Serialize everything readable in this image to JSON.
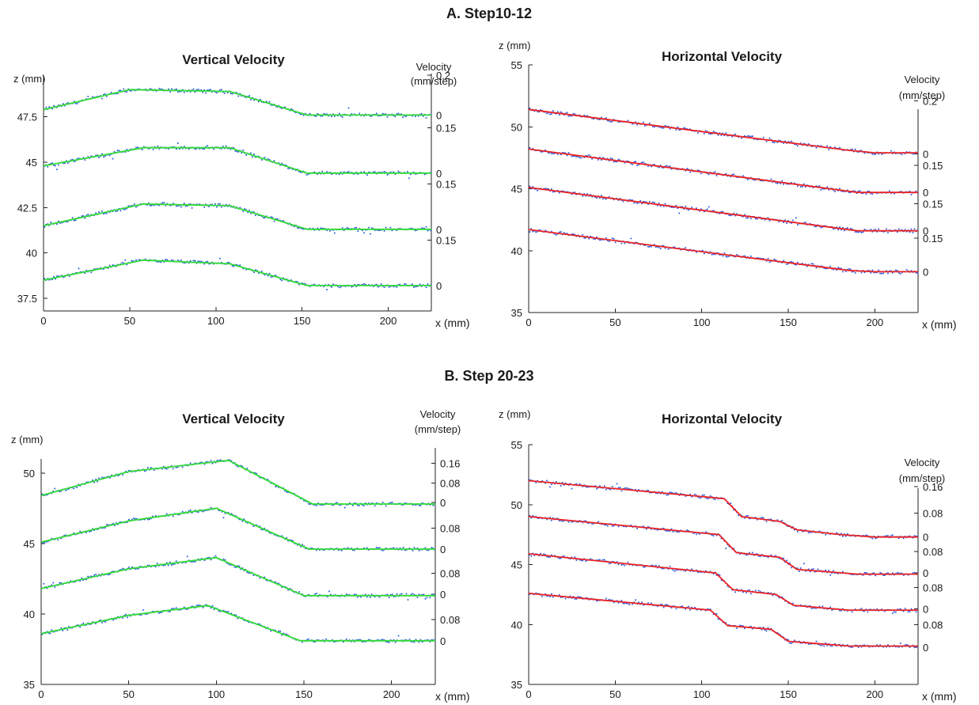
{
  "sections": [
    {
      "label": "A. Step10-12"
    },
    {
      "label": "B. Step 20-23"
    }
  ],
  "chart_data": [
    {
      "type": "line",
      "title": "Vertical Velocity",
      "section": "A. Step10-12",
      "ylabel": "z (mm)",
      "xlabel": "x (mm)",
      "y2label": [
        "Velocity",
        "(mm/step)"
      ],
      "xlim": [
        0,
        225
      ],
      "ylim": [
        36.8,
        49.8
      ],
      "xticks": [
        0,
        50,
        100,
        150,
        200
      ],
      "yticks": [
        37.5,
        40,
        42.5,
        45,
        47.5
      ],
      "ytick_labels": [
        "37.5",
        "40",
        "42.5",
        "45",
        "47.5"
      ],
      "right_ticks": [
        {
          "z": 49.8,
          "label": "0.2"
        },
        {
          "z": 47.6,
          "label": "0"
        },
        {
          "z": 46.9,
          "label": "0.15"
        },
        {
          "z": 44.4,
          "label": "0"
        },
        {
          "z": 43.8,
          "label": "0.15"
        },
        {
          "z": 41.3,
          "label": "0"
        },
        {
          "z": 40.7,
          "label": "0.15"
        },
        {
          "z": 38.2,
          "label": "0"
        }
      ],
      "model_color": "#33dd33",
      "series": [
        {
          "x": [
            0,
            50,
            108,
            153,
            225
          ],
          "y": [
            47.9,
            49.0,
            48.9,
            47.6,
            47.6
          ]
        },
        {
          "x": [
            0,
            58,
            108,
            153,
            225
          ],
          "y": [
            44.8,
            45.8,
            45.8,
            44.4,
            44.4
          ]
        },
        {
          "x": [
            0,
            58,
            108,
            153,
            225
          ],
          "y": [
            41.5,
            42.7,
            42.6,
            41.3,
            41.3
          ]
        },
        {
          "x": [
            0,
            58,
            108,
            153,
            225
          ],
          "y": [
            38.5,
            39.6,
            39.4,
            38.2,
            38.2
          ]
        }
      ]
    },
    {
      "type": "line",
      "title": "Horizontal Velocity",
      "section": "A. Step10-12",
      "ylabel": "z (mm)",
      "xlabel": "x (mm)",
      "y2label": [
        "Velocity",
        "(mm/step)"
      ],
      "xlim": [
        0,
        225
      ],
      "ylim": [
        35,
        55
      ],
      "xticks": [
        0,
        50,
        100,
        150,
        200
      ],
      "yticks": [
        35,
        40,
        45,
        50,
        55
      ],
      "ytick_labels": [
        "35",
        "40",
        "45",
        "50",
        "55"
      ],
      "right_ticks": [
        {
          "z": 52.1,
          "label": "0.2"
        },
        {
          "z": 47.8,
          "label": "0"
        },
        {
          "z": 46.9,
          "label": "0.15"
        },
        {
          "z": 44.7,
          "label": "0"
        },
        {
          "z": 43.8,
          "label": "0.15"
        },
        {
          "z": 41.6,
          "label": "0"
        },
        {
          "z": 41.0,
          "label": "0.15"
        },
        {
          "z": 38.3,
          "label": "0"
        }
      ],
      "model_color": "#ee2222",
      "series": [
        {
          "x": [
            0,
            185,
            200,
            225
          ],
          "y": [
            51.4,
            48.1,
            47.9,
            47.9
          ]
        },
        {
          "x": [
            0,
            190,
            225
          ],
          "y": [
            48.2,
            44.7,
            44.7
          ]
        },
        {
          "x": [
            0,
            190,
            225
          ],
          "y": [
            45.1,
            41.6,
            41.6
          ]
        },
        {
          "x": [
            0,
            185,
            200,
            225
          ],
          "y": [
            41.7,
            38.4,
            38.3,
            38.3
          ]
        }
      ]
    },
    {
      "type": "line",
      "title": "Vertical Velocity",
      "section": "B. Step 20-23",
      "ylabel": "z (mm)",
      "xlabel": "x (mm)",
      "y2label": [
        "Velocity",
        "(mm/step)"
      ],
      "xlim": [
        0,
        225
      ],
      "ylim": [
        35,
        51
      ],
      "xticks": [
        0,
        50,
        100,
        150,
        200
      ],
      "yticks": [
        35,
        40,
        45,
        50
      ],
      "ytick_labels": [
        "35",
        "40",
        "45",
        "50"
      ],
      "right_ticks": [
        {
          "z": 50.7,
          "label": "0.16"
        },
        {
          "z": 49.3,
          "label": "0.08"
        },
        {
          "z": 47.9,
          "label": "0"
        },
        {
          "z": 46.1,
          "label": "0.08"
        },
        {
          "z": 44.6,
          "label": "0"
        },
        {
          "z": 42.9,
          "label": "0.08"
        },
        {
          "z": 41.4,
          "label": "0"
        },
        {
          "z": 39.6,
          "label": "0.08"
        },
        {
          "z": 38.1,
          "label": "0"
        }
      ],
      "model_color": "#33dd33",
      "series": [
        {
          "x": [
            0,
            50,
            107,
            155,
            225
          ],
          "y": [
            48.4,
            50.1,
            50.9,
            47.8,
            47.8
          ]
        },
        {
          "x": [
            0,
            50,
            100,
            153,
            225
          ],
          "y": [
            45.1,
            46.6,
            47.5,
            44.6,
            44.6
          ]
        },
        {
          "x": [
            0,
            50,
            100,
            150,
            225
          ],
          "y": [
            41.8,
            43.2,
            44.0,
            41.3,
            41.3
          ]
        },
        {
          "x": [
            0,
            50,
            95,
            148,
            225
          ],
          "y": [
            38.6,
            39.9,
            40.6,
            38.1,
            38.1
          ]
        }
      ]
    },
    {
      "type": "line",
      "title": "Horizontal Velocity",
      "section": "B. Step 20-23",
      "ylabel": "z (mm)",
      "xlabel": "x (mm)",
      "y2label": [
        "Velocity",
        "(mm/step)"
      ],
      "xlim": [
        0,
        225
      ],
      "ylim": [
        35,
        55
      ],
      "xticks": [
        0,
        50,
        100,
        150,
        200
      ],
      "yticks": [
        35,
        40,
        45,
        50,
        55
      ],
      "ytick_labels": [
        "35",
        "40",
        "45",
        "50",
        "55"
      ],
      "right_ticks": [
        {
          "z": 51.5,
          "label": "0.16"
        },
        {
          "z": 49.3,
          "label": "0.08"
        },
        {
          "z": 47.3,
          "label": "0"
        },
        {
          "z": 46.1,
          "label": "0.08"
        },
        {
          "z": 44.3,
          "label": "0"
        },
        {
          "z": 43.1,
          "label": "0.08"
        },
        {
          "z": 41.3,
          "label": "0"
        },
        {
          "z": 40.0,
          "label": "0.08"
        },
        {
          "z": 38.1,
          "label": "0"
        }
      ],
      "model_color": "#ee2222",
      "series": [
        {
          "x": [
            0,
            113,
            123,
            145,
            155,
            180,
            200,
            225
          ],
          "y": [
            52.0,
            50.5,
            49.0,
            48.6,
            47.9,
            47.5,
            47.3,
            47.3
          ]
        },
        {
          "x": [
            0,
            110,
            120,
            145,
            155,
            190,
            225
          ],
          "y": [
            49.0,
            47.5,
            46.0,
            45.6,
            44.6,
            44.2,
            44.2
          ]
        },
        {
          "x": [
            0,
            108,
            118,
            143,
            153,
            185,
            225
          ],
          "y": [
            45.9,
            44.3,
            42.9,
            42.5,
            41.6,
            41.2,
            41.2
          ]
        },
        {
          "x": [
            0,
            105,
            115,
            140,
            150,
            185,
            225
          ],
          "y": [
            42.6,
            41.2,
            39.9,
            39.6,
            38.6,
            38.2,
            38.2
          ]
        }
      ]
    }
  ]
}
